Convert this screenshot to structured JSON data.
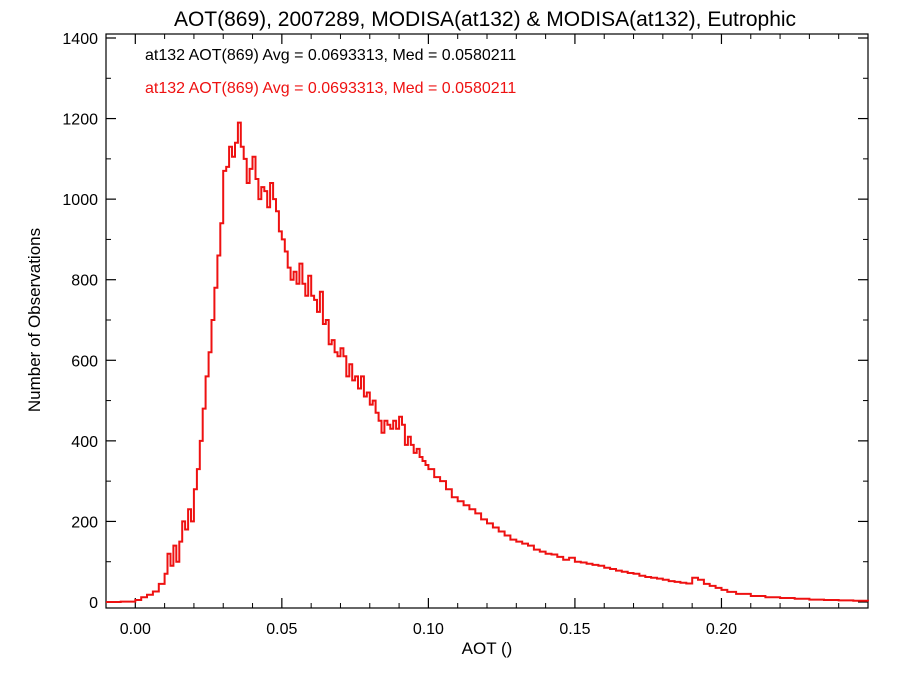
{
  "chart_data": {
    "type": "histogram",
    "title": "AOT(869), 2007289, MODISA(at132) & MODISA(at132), Eutrophic",
    "xlabel": "AOT ()",
    "ylabel": "Number of Observations",
    "xlim": [
      -0.01,
      0.25
    ],
    "ylim": [
      0,
      1400
    ],
    "x_ticks": [
      0.0,
      0.05,
      0.1,
      0.15,
      0.2
    ],
    "x_tick_labels": [
      "0.00",
      "0.05",
      "0.10",
      "0.15",
      "0.20"
    ],
    "y_ticks": [
      0,
      200,
      400,
      600,
      800,
      1000,
      1200,
      1400
    ],
    "y_tick_labels": [
      "0",
      "200",
      "400",
      "600",
      "800",
      "1000",
      "1200",
      "1400"
    ],
    "grid": false,
    "legend_position": "top-left",
    "bin_width": 0.001,
    "annotations": [
      {
        "text": "at132 AOT(869) Avg = 0.0693313, Med = 0.0580211",
        "color": "#000000"
      },
      {
        "text": "at132 AOT(869) Avg = 0.0693313, Med = 0.0580211",
        "color": "#ee1111"
      }
    ],
    "series": [
      {
        "color": "#ee1111",
        "points": [
          [
            -0.01,
            0
          ],
          [
            -0.005,
            1
          ],
          [
            0.0,
            5
          ],
          [
            0.002,
            12
          ],
          [
            0.004,
            18
          ],
          [
            0.006,
            26
          ],
          [
            0.008,
            45
          ],
          [
            0.01,
            70
          ],
          [
            0.011,
            120
          ],
          [
            0.012,
            90
          ],
          [
            0.013,
            140
          ],
          [
            0.014,
            100
          ],
          [
            0.015,
            150
          ],
          [
            0.016,
            200
          ],
          [
            0.017,
            180
          ],
          [
            0.018,
            230
          ],
          [
            0.019,
            200
          ],
          [
            0.02,
            280
          ],
          [
            0.021,
            330
          ],
          [
            0.022,
            400
          ],
          [
            0.023,
            480
          ],
          [
            0.024,
            560
          ],
          [
            0.025,
            620
          ],
          [
            0.026,
            700
          ],
          [
            0.027,
            780
          ],
          [
            0.028,
            860
          ],
          [
            0.029,
            940
          ],
          [
            0.03,
            1070
          ],
          [
            0.031,
            1080
          ],
          [
            0.032,
            1130
          ],
          [
            0.033,
            1105
          ],
          [
            0.034,
            1140
          ],
          [
            0.035,
            1190
          ],
          [
            0.036,
            1130
          ],
          [
            0.037,
            1100
          ],
          [
            0.038,
            1040
          ],
          [
            0.039,
            1075
          ],
          [
            0.04,
            1105
          ],
          [
            0.041,
            1050
          ],
          [
            0.042,
            1000
          ],
          [
            0.043,
            1030
          ],
          [
            0.044,
            1020
          ],
          [
            0.045,
            980
          ],
          [
            0.046,
            1040
          ],
          [
            0.047,
            1000
          ],
          [
            0.048,
            970
          ],
          [
            0.049,
            920
          ],
          [
            0.05,
            900
          ],
          [
            0.051,
            870
          ],
          [
            0.052,
            830
          ],
          [
            0.053,
            800
          ],
          [
            0.054,
            820
          ],
          [
            0.055,
            790
          ],
          [
            0.056,
            840
          ],
          [
            0.057,
            790
          ],
          [
            0.058,
            760
          ],
          [
            0.059,
            810
          ],
          [
            0.06,
            760
          ],
          [
            0.061,
            750
          ],
          [
            0.062,
            720
          ],
          [
            0.063,
            770
          ],
          [
            0.064,
            690
          ],
          [
            0.065,
            700
          ],
          [
            0.066,
            640
          ],
          [
            0.067,
            650
          ],
          [
            0.068,
            620
          ],
          [
            0.069,
            610
          ],
          [
            0.07,
            630
          ],
          [
            0.071,
            610
          ],
          [
            0.072,
            560
          ],
          [
            0.073,
            590
          ],
          [
            0.074,
            550
          ],
          [
            0.075,
            560
          ],
          [
            0.076,
            530
          ],
          [
            0.077,
            560
          ],
          [
            0.078,
            510
          ],
          [
            0.079,
            520
          ],
          [
            0.08,
            490
          ],
          [
            0.081,
            500
          ],
          [
            0.082,
            470
          ],
          [
            0.083,
            450
          ],
          [
            0.084,
            420
          ],
          [
            0.085,
            450
          ],
          [
            0.086,
            440
          ],
          [
            0.087,
            430
          ],
          [
            0.088,
            450
          ],
          [
            0.089,
            430
          ],
          [
            0.09,
            460
          ],
          [
            0.091,
            440
          ],
          [
            0.092,
            390
          ],
          [
            0.093,
            410
          ],
          [
            0.094,
            390
          ],
          [
            0.095,
            370
          ],
          [
            0.096,
            380
          ],
          [
            0.097,
            360
          ],
          [
            0.098,
            350
          ],
          [
            0.099,
            340
          ],
          [
            0.1,
            330
          ],
          [
            0.102,
            310
          ],
          [
            0.104,
            300
          ],
          [
            0.106,
            280
          ],
          [
            0.108,
            260
          ],
          [
            0.11,
            250
          ],
          [
            0.112,
            240
          ],
          [
            0.114,
            230
          ],
          [
            0.116,
            220
          ],
          [
            0.118,
            205
          ],
          [
            0.12,
            195
          ],
          [
            0.122,
            185
          ],
          [
            0.124,
            175
          ],
          [
            0.126,
            165
          ],
          [
            0.128,
            155
          ],
          [
            0.13,
            150
          ],
          [
            0.132,
            145
          ],
          [
            0.134,
            140
          ],
          [
            0.136,
            130
          ],
          [
            0.138,
            125
          ],
          [
            0.14,
            120
          ],
          [
            0.142,
            118
          ],
          [
            0.144,
            112
          ],
          [
            0.146,
            105
          ],
          [
            0.148,
            110
          ],
          [
            0.15,
            100
          ],
          [
            0.152,
            98
          ],
          [
            0.154,
            95
          ],
          [
            0.156,
            92
          ],
          [
            0.158,
            90
          ],
          [
            0.16,
            85
          ],
          [
            0.162,
            82
          ],
          [
            0.164,
            78
          ],
          [
            0.166,
            75
          ],
          [
            0.168,
            72
          ],
          [
            0.17,
            70
          ],
          [
            0.172,
            65
          ],
          [
            0.174,
            62
          ],
          [
            0.176,
            60
          ],
          [
            0.178,
            58
          ],
          [
            0.18,
            55
          ],
          [
            0.182,
            52
          ],
          [
            0.184,
            50
          ],
          [
            0.186,
            48
          ],
          [
            0.188,
            46
          ],
          [
            0.19,
            60
          ],
          [
            0.192,
            55
          ],
          [
            0.194,
            45
          ],
          [
            0.196,
            40
          ],
          [
            0.198,
            35
          ],
          [
            0.2,
            30
          ],
          [
            0.202,
            25
          ],
          [
            0.205,
            20
          ],
          [
            0.21,
            15
          ],
          [
            0.215,
            12
          ],
          [
            0.22,
            10
          ],
          [
            0.225,
            8
          ],
          [
            0.23,
            6
          ],
          [
            0.235,
            5
          ],
          [
            0.24,
            4
          ],
          [
            0.245,
            3
          ],
          [
            0.25,
            2
          ]
        ]
      }
    ]
  }
}
